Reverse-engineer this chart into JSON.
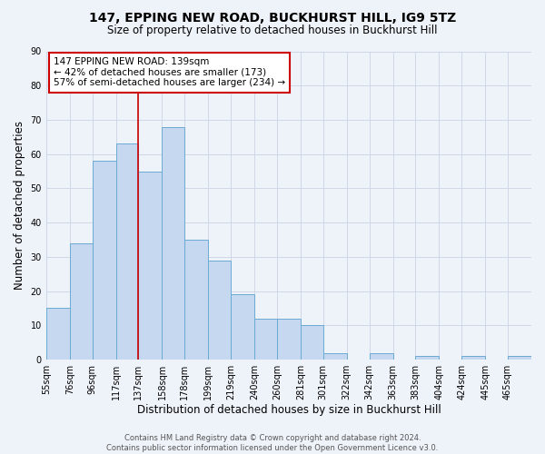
{
  "title": "147, EPPING NEW ROAD, BUCKHURST HILL, IG9 5TZ",
  "subtitle": "Size of property relative to detached houses in Buckhurst Hill",
  "xlabel": "Distribution of detached houses by size in Buckhurst Hill",
  "ylabel": "Number of detached properties",
  "bin_labels": [
    "55sqm",
    "76sqm",
    "96sqm",
    "117sqm",
    "137sqm",
    "158sqm",
    "178sqm",
    "199sqm",
    "219sqm",
    "240sqm",
    "260sqm",
    "281sqm",
    "301sqm",
    "322sqm",
    "342sqm",
    "363sqm",
    "383sqm",
    "404sqm",
    "424sqm",
    "445sqm",
    "465sqm"
  ],
  "bin_edges": [
    55,
    76,
    96,
    117,
    137,
    158,
    178,
    199,
    219,
    240,
    260,
    281,
    301,
    322,
    342,
    363,
    383,
    404,
    424,
    445,
    465,
    486
  ],
  "counts": [
    15,
    34,
    58,
    63,
    55,
    68,
    35,
    29,
    19,
    12,
    12,
    10,
    2,
    0,
    2,
    0,
    1,
    0,
    1,
    0,
    1
  ],
  "bar_color": "#c5d8ef",
  "bar_edge_color": "#6aaad4",
  "vline_x": 137,
  "vline_color": "#cc0000",
  "annotation_title": "147 EPPING NEW ROAD: 139sqm",
  "annotation_line1": "← 42% of detached houses are smaller (173)",
  "annotation_line2": "57% of semi-detached houses are larger (234) →",
  "annotation_box_color": "#ffffff",
  "annotation_box_edge_color": "#cc0000",
  "ylim": [
    0,
    90
  ],
  "yticks": [
    0,
    10,
    20,
    30,
    40,
    50,
    60,
    70,
    80,
    90
  ],
  "footer1": "Contains HM Land Registry data © Crown copyright and database right 2024.",
  "footer2": "Contains public sector information licensed under the Open Government Licence v3.0.",
  "bg_color": "#eef2f9",
  "grid_color": "#d0d8e8",
  "title_fontsize": 10,
  "subtitle_fontsize": 8.5,
  "axis_label_fontsize": 8.5,
  "tick_fontsize": 7,
  "annotation_fontsize": 7.5,
  "footer_fontsize": 6
}
